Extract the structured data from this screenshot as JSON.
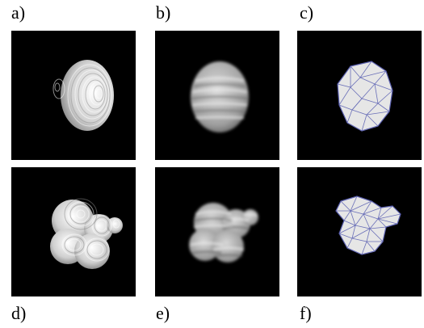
{
  "figure": {
    "panels": [
      {
        "label": "a)",
        "description": "sharp striped ellipsoid"
      },
      {
        "label": "b)",
        "description": "blurred striped ellipsoid"
      },
      {
        "label": "c)",
        "description": "triangulated ellipsoid mesh"
      },
      {
        "label": "d)",
        "description": "sharp striped multi-blob"
      },
      {
        "label": "e)",
        "description": "blurred striped multi-blob"
      },
      {
        "label": "f)",
        "description": "triangulated multi-blob mesh"
      }
    ],
    "colors": {
      "background": "#000000",
      "surface": "#e8e8e8",
      "mesh_edge": "#5a5fae"
    }
  }
}
